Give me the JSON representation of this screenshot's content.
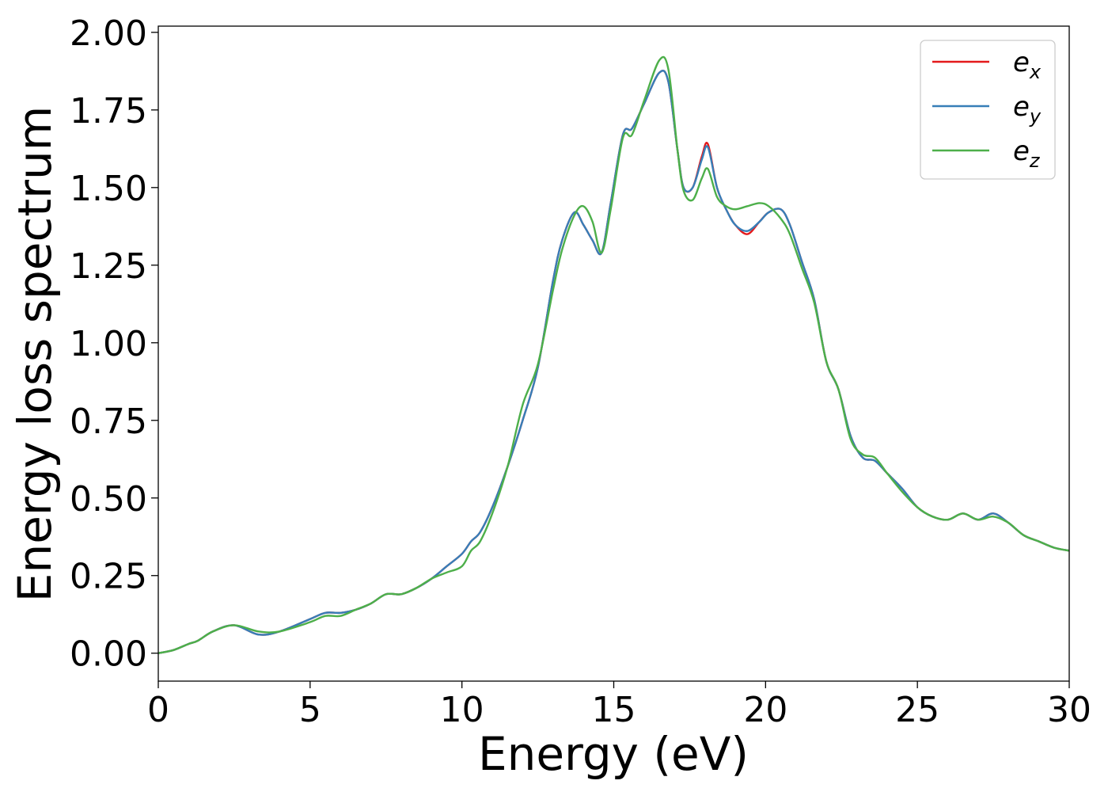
{
  "chart_data": {
    "type": "line",
    "title": "",
    "xlabel": "Energy (eV)",
    "ylabel": "Energy loss spectrum",
    "xlim": [
      0,
      30
    ],
    "ylim": [
      -0.09,
      2.02
    ],
    "xticks": [
      0,
      5,
      10,
      15,
      20,
      25,
      30
    ],
    "xtick_labels": [
      "0",
      "5",
      "10",
      "15",
      "20",
      "25",
      "30"
    ],
    "yticks": [
      0,
      0.25,
      0.5,
      0.75,
      1.0,
      1.25,
      1.5,
      1.75,
      2.0
    ],
    "ytick_labels": [
      "0.00",
      "0.25",
      "0.50",
      "0.75",
      "1.00",
      "1.25",
      "1.50",
      "1.75",
      "2.00"
    ],
    "grid": false,
    "legend_position": "top-right",
    "x": [
      0,
      0.5,
      1.0,
      1.3,
      1.8,
      2.5,
      3.3,
      4.0,
      5.0,
      5.5,
      6.0,
      6.5,
      7.0,
      7.5,
      8.0,
      8.5,
      9.0,
      9.5,
      10.0,
      10.3,
      10.6,
      11.0,
      11.5,
      12.0,
      12.5,
      13.0,
      13.3,
      13.7,
      14.0,
      14.3,
      14.6,
      14.9,
      15.3,
      15.6,
      16.0,
      16.5,
      16.8,
      17.1,
      17.3,
      17.6,
      17.9,
      18.1,
      18.4,
      18.7,
      19.0,
      19.4,
      19.8,
      20.1,
      20.5,
      20.8,
      21.2,
      21.6,
      22.0,
      22.4,
      22.8,
      23.2,
      23.6,
      24.0,
      24.5,
      25.0,
      25.5,
      26.0,
      26.5,
      27.0,
      27.5,
      28.0,
      28.5,
      29.0,
      29.5,
      30.0
    ],
    "series": [
      {
        "name": "e_x",
        "color": "#e41a1c",
        "y": [
          0.0,
          0.01,
          0.03,
          0.04,
          0.07,
          0.09,
          0.06,
          0.07,
          0.11,
          0.13,
          0.13,
          0.14,
          0.16,
          0.19,
          0.19,
          0.21,
          0.24,
          0.28,
          0.32,
          0.36,
          0.39,
          0.47,
          0.6,
          0.75,
          0.92,
          1.2,
          1.33,
          1.42,
          1.38,
          1.33,
          1.29,
          1.45,
          1.67,
          1.69,
          1.77,
          1.87,
          1.84,
          1.62,
          1.5,
          1.5,
          1.6,
          1.64,
          1.5,
          1.43,
          1.38,
          1.35,
          1.39,
          1.42,
          1.43,
          1.38,
          1.26,
          1.14,
          0.94,
          0.85,
          0.7,
          0.63,
          0.62,
          0.58,
          0.53,
          0.47,
          0.44,
          0.43,
          0.45,
          0.43,
          0.45,
          0.42,
          0.38,
          0.36,
          0.34,
          0.33
        ]
      },
      {
        "name": "e_y",
        "color": "#377eb8",
        "y": [
          0.0,
          0.01,
          0.03,
          0.04,
          0.07,
          0.09,
          0.06,
          0.07,
          0.11,
          0.13,
          0.13,
          0.14,
          0.16,
          0.19,
          0.19,
          0.21,
          0.24,
          0.28,
          0.32,
          0.36,
          0.39,
          0.47,
          0.6,
          0.75,
          0.92,
          1.2,
          1.33,
          1.42,
          1.38,
          1.33,
          1.29,
          1.45,
          1.67,
          1.69,
          1.77,
          1.87,
          1.84,
          1.62,
          1.5,
          1.5,
          1.59,
          1.63,
          1.5,
          1.43,
          1.38,
          1.36,
          1.39,
          1.42,
          1.43,
          1.38,
          1.26,
          1.14,
          0.94,
          0.85,
          0.7,
          0.63,
          0.62,
          0.58,
          0.53,
          0.47,
          0.44,
          0.43,
          0.45,
          0.43,
          0.45,
          0.42,
          0.38,
          0.36,
          0.34,
          0.33
        ]
      },
      {
        "name": "e_z",
        "color": "#4daf4a",
        "y": [
          0.0,
          0.01,
          0.03,
          0.04,
          0.07,
          0.09,
          0.07,
          0.07,
          0.1,
          0.12,
          0.12,
          0.14,
          0.16,
          0.19,
          0.19,
          0.21,
          0.24,
          0.26,
          0.28,
          0.33,
          0.36,
          0.45,
          0.6,
          0.8,
          0.93,
          1.17,
          1.3,
          1.41,
          1.44,
          1.39,
          1.29,
          1.43,
          1.66,
          1.67,
          1.78,
          1.91,
          1.88,
          1.62,
          1.49,
          1.46,
          1.53,
          1.56,
          1.47,
          1.44,
          1.43,
          1.44,
          1.45,
          1.44,
          1.4,
          1.35,
          1.24,
          1.13,
          0.94,
          0.85,
          0.69,
          0.64,
          0.63,
          0.58,
          0.52,
          0.47,
          0.44,
          0.43,
          0.45,
          0.43,
          0.44,
          0.42,
          0.38,
          0.36,
          0.34,
          0.33
        ]
      }
    ]
  }
}
